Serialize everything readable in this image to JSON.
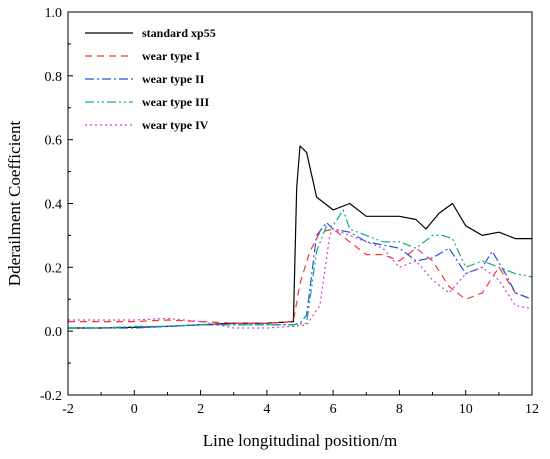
{
  "chart_data": {
    "type": "line",
    "xlabel": "Line longitudinal position/m",
    "ylabel": "Dderailment Coefficient",
    "xlim": [
      -2,
      12
    ],
    "ylim": [
      -0.2,
      1.0
    ],
    "xticks": [
      "-2",
      "0",
      "2",
      "4",
      "6",
      "8",
      "10",
      "12"
    ],
    "yticks": [
      "-0.2",
      "0.0",
      "0.2",
      "0.4",
      "0.6",
      "0.8",
      "1.0"
    ],
    "grid": false,
    "legend": "top-left",
    "series": [
      {
        "name": "standard xp55",
        "color": "#000000",
        "dash": "solid",
        "x": [
          -2,
          -1,
          0,
          1,
          2,
          3,
          4,
          4.8,
          4.9,
          5.0,
          5.2,
          5.5,
          6.0,
          6.5,
          7.0,
          7.5,
          8.0,
          8.5,
          8.8,
          9.2,
          9.6,
          10.0,
          10.5,
          11.0,
          11.5,
          12.0
        ],
        "y": [
          0.01,
          0.01,
          0.012,
          0.015,
          0.02,
          0.025,
          0.025,
          0.03,
          0.45,
          0.58,
          0.56,
          0.42,
          0.38,
          0.4,
          0.36,
          0.36,
          0.36,
          0.35,
          0.32,
          0.37,
          0.4,
          0.33,
          0.3,
          0.31,
          0.29,
          0.29
        ]
      },
      {
        "name": "wear type I",
        "color": "#ff3333",
        "dash": "7,5",
        "x": [
          -2,
          -1,
          0,
          1,
          2,
          3,
          4,
          4.8,
          5.0,
          5.3,
          5.6,
          6.0,
          6.5,
          7.0,
          7.5,
          8.0,
          8.5,
          9.0,
          9.5,
          10.0,
          10.5,
          11.0,
          11.5,
          12.0
        ],
        "y": [
          0.03,
          0.03,
          0.03,
          0.035,
          0.03,
          0.025,
          0.025,
          0.03,
          0.15,
          0.25,
          0.31,
          0.32,
          0.28,
          0.24,
          0.24,
          0.22,
          0.26,
          0.22,
          0.14,
          0.1,
          0.12,
          0.2,
          0.12,
          0.1
        ]
      },
      {
        "name": "wear type II",
        "color": "#2255dd",
        "dash": "9,3,2,3",
        "x": [
          -2,
          -1,
          0,
          1,
          2,
          3,
          4,
          4.8,
          5.0,
          5.2,
          5.5,
          5.8,
          6.0,
          6.5,
          7.0,
          7.5,
          8.0,
          8.5,
          9.0,
          9.5,
          10.0,
          10.5,
          10.8,
          11.2,
          11.5,
          12.0
        ],
        "y": [
          0.01,
          0.01,
          0.01,
          0.015,
          0.02,
          0.02,
          0.02,
          0.02,
          0.025,
          0.05,
          0.3,
          0.34,
          0.32,
          0.31,
          0.28,
          0.27,
          0.26,
          0.22,
          0.23,
          0.26,
          0.18,
          0.2,
          0.25,
          0.18,
          0.12,
          0.1
        ]
      },
      {
        "name": "wear type III",
        "color": "#11aa88",
        "dash": "9,3,2,3,2,3",
        "x": [
          -2,
          -1,
          0,
          1,
          2,
          3,
          4,
          4.8,
          5.2,
          5.5,
          5.8,
          6.0,
          6.3,
          6.5,
          7.0,
          7.5,
          8.0,
          8.5,
          9.0,
          9.3,
          9.6,
          10.0,
          10.5,
          11.0,
          11.5,
          12.0
        ],
        "y": [
          0.01,
          0.01,
          0.015,
          0.015,
          0.02,
          0.02,
          0.02,
          0.02,
          0.025,
          0.25,
          0.33,
          0.33,
          0.38,
          0.32,
          0.3,
          0.28,
          0.28,
          0.26,
          0.3,
          0.3,
          0.29,
          0.2,
          0.22,
          0.2,
          0.18,
          0.17
        ]
      },
      {
        "name": "wear type IV",
        "color": "#cc44cc",
        "dash": "2,3",
        "x": [
          -2,
          -1,
          0,
          1,
          2,
          3,
          4,
          4.8,
          5.2,
          5.6,
          5.9,
          6.0,
          6.5,
          7.0,
          7.5,
          8.0,
          8.5,
          9.0,
          9.5,
          10.0,
          10.5,
          11.0,
          11.5,
          12.0
        ],
        "y": [
          0.035,
          0.035,
          0.035,
          0.04,
          0.03,
          0.01,
          0.01,
          0.015,
          0.02,
          0.08,
          0.3,
          0.32,
          0.3,
          0.28,
          0.26,
          0.2,
          0.22,
          0.16,
          0.12,
          0.18,
          0.2,
          0.16,
          0.08,
          0.07
        ]
      }
    ]
  }
}
